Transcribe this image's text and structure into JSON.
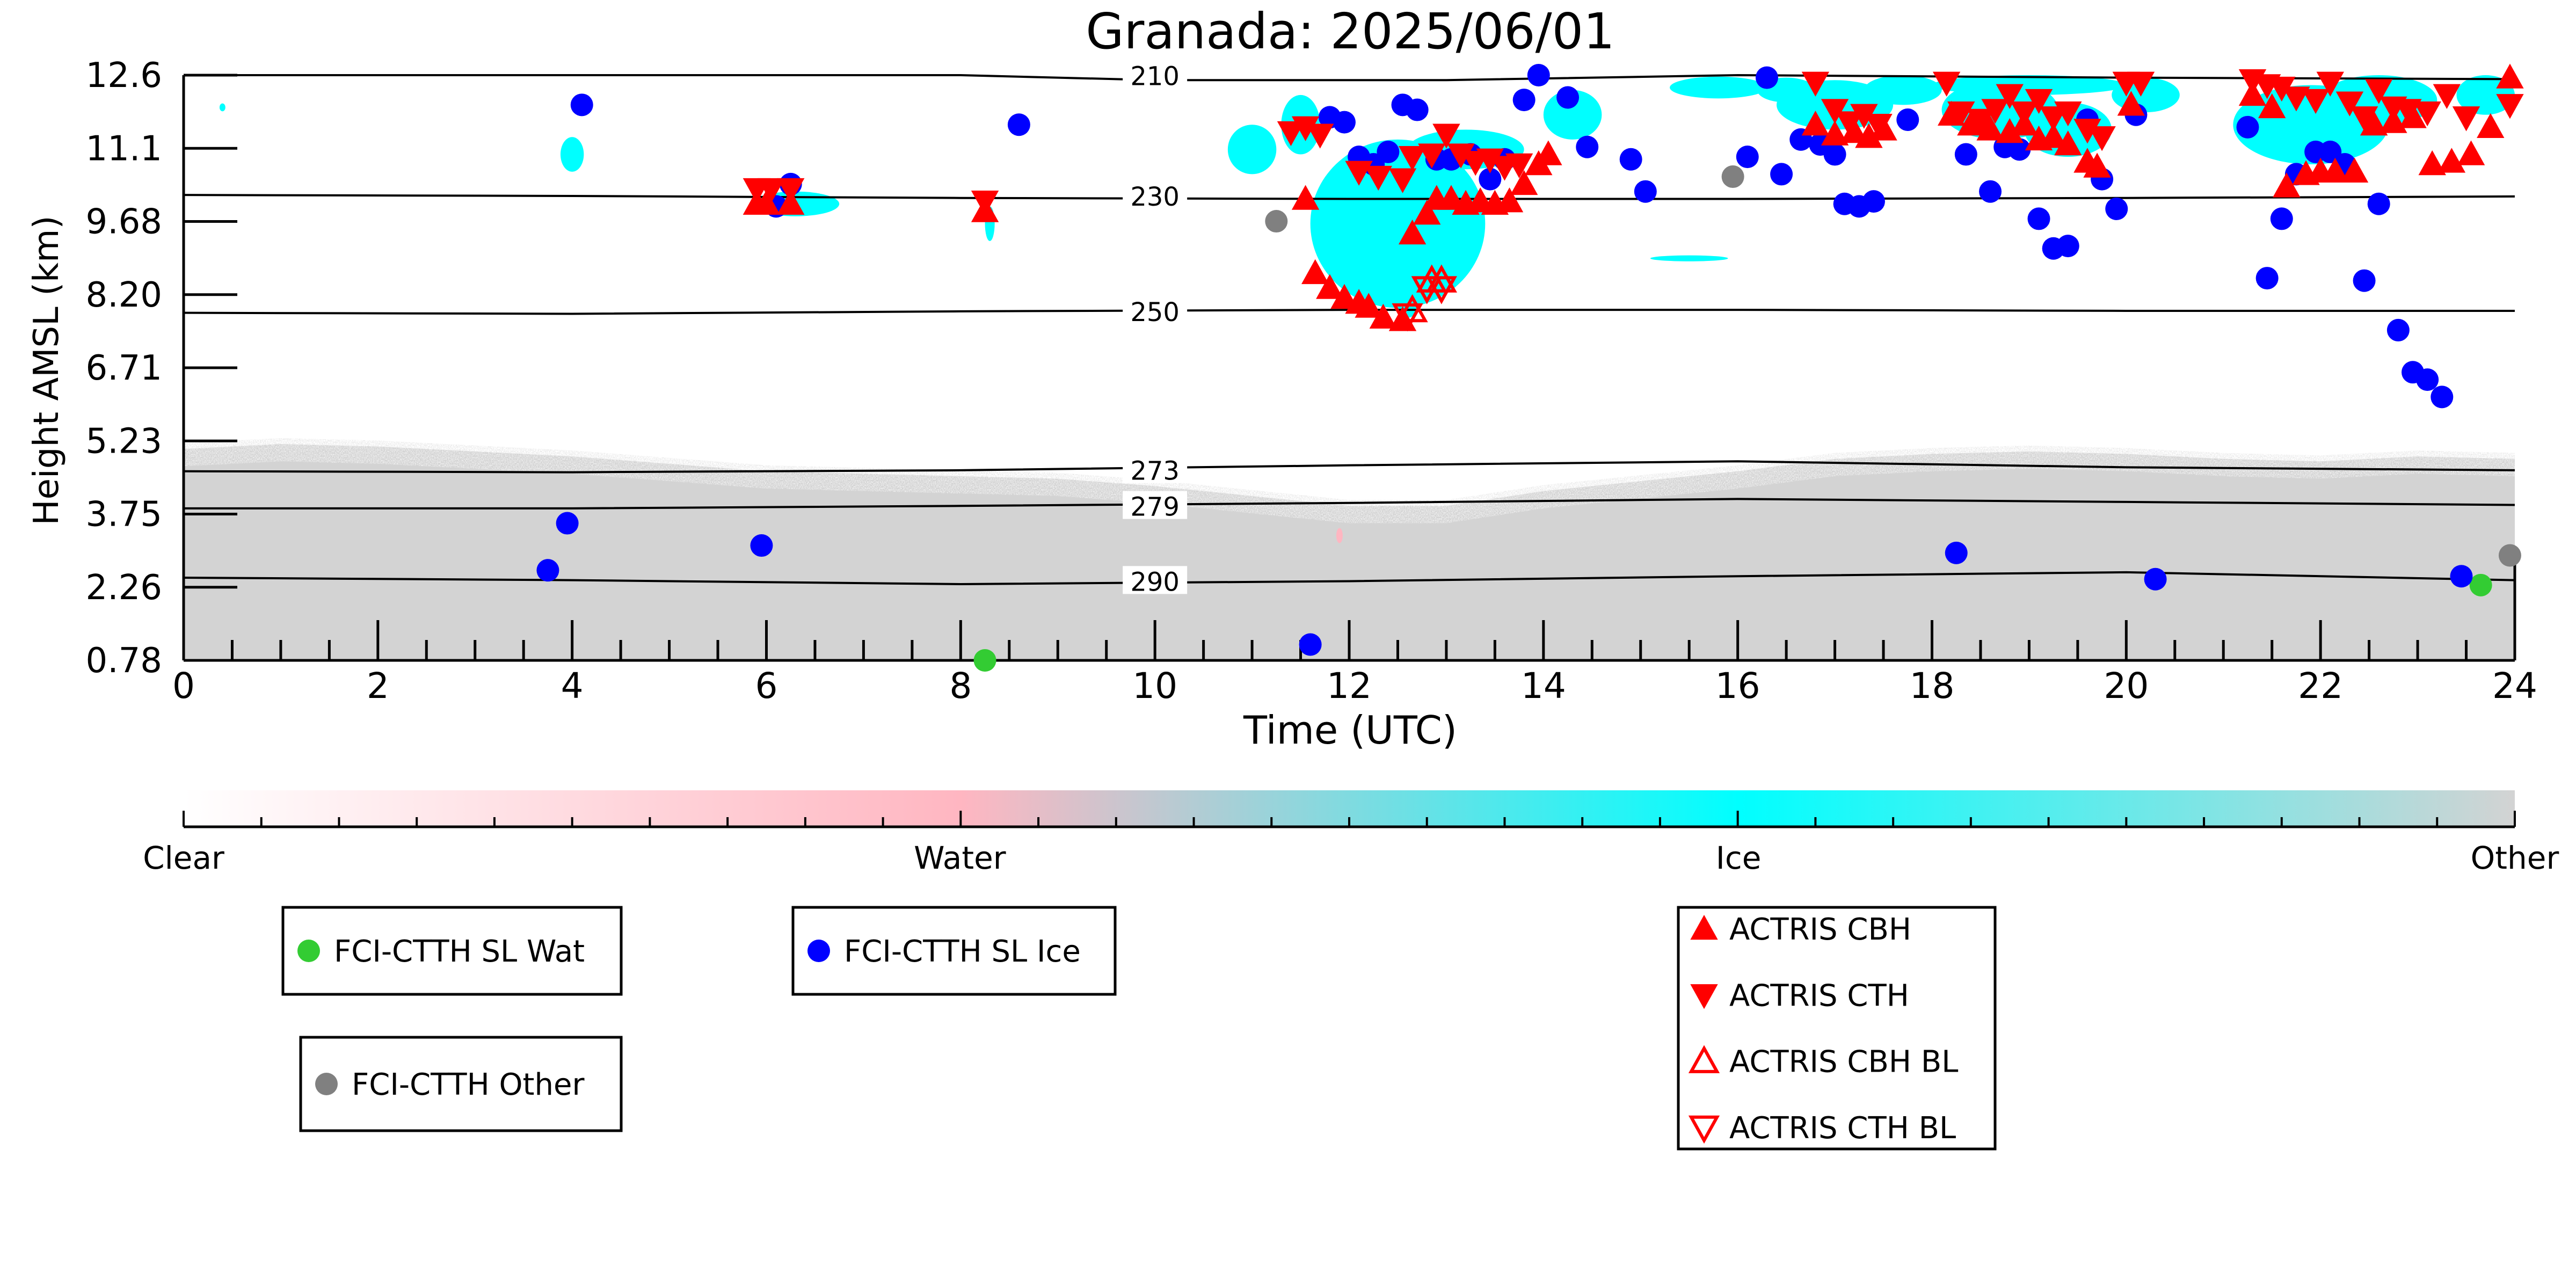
{
  "chart_data": {
    "type": "scatter",
    "title": "Granada: 2025/06/01",
    "xlabel": "Time (UTC)",
    "ylabel": "Height AMSL (km)",
    "xlim": [
      0,
      24
    ],
    "ylim": [
      0.78,
      12.6
    ],
    "x_ticks": [
      0,
      2,
      4,
      6,
      8,
      10,
      12,
      14,
      16,
      18,
      20,
      22,
      24
    ],
    "y_ticks": [
      "0.78",
      "2.26",
      "3.75",
      "5.23",
      "6.71",
      "8.20",
      "9.68",
      "11.1",
      "12.6"
    ],
    "colorbar": {
      "labels": [
        {
          "text": "Clear",
          "pos": 0.0
        },
        {
          "text": "Water",
          "pos": 0.333
        },
        {
          "text": "Ice",
          "pos": 0.667
        },
        {
          "text": "Other",
          "pos": 1.0
        }
      ],
      "stops": [
        "#ffffff",
        "#ffb6c1",
        "#00ffff",
        "#d3d3d3"
      ]
    },
    "colors": {
      "clear": "#ffffff",
      "water": "#ffb6c1",
      "ice": "#00ffff",
      "other": "#d3d3d3",
      "sl_wat": "#33cc33",
      "sl_ice": "#0000ff",
      "sl_other": "#808080",
      "actris": "#ff0000"
    },
    "isotherms": [
      {
        "label": "210",
        "x": [
          0,
          8,
          10,
          13,
          16,
          20,
          24
        ],
        "y": [
          12.6,
          12.65,
          12.5,
          12.5,
          12.6,
          12.55,
          12.52
        ]
      },
      {
        "label": "230",
        "x": [
          0,
          4,
          8,
          12,
          16,
          20,
          24
        ],
        "y": [
          10.18,
          10.16,
          10.12,
          10.1,
          10.1,
          10.12,
          10.15
        ]
      },
      {
        "label": "250",
        "x": [
          0,
          4,
          8,
          12,
          16,
          20,
          24
        ],
        "y": [
          7.8,
          7.78,
          7.83,
          7.86,
          7.86,
          7.84,
          7.84
        ]
      },
      {
        "label": "273",
        "x": [
          0,
          4,
          8,
          12,
          16,
          20,
          24
        ],
        "y": [
          4.6,
          4.58,
          4.62,
          4.72,
          4.8,
          4.68,
          4.62
        ]
      },
      {
        "label": "279",
        "x": [
          0,
          4,
          8,
          12,
          16,
          20,
          24
        ],
        "y": [
          3.85,
          3.85,
          3.9,
          3.96,
          4.04,
          3.98,
          3.92
        ]
      },
      {
        "label": "290",
        "x": [
          0,
          4,
          8,
          12,
          16,
          20,
          24
        ],
        "y": [
          2.45,
          2.4,
          2.32,
          2.38,
          2.48,
          2.56,
          2.4
        ]
      }
    ],
    "series": [
      {
        "name": "FCI-CTTH SL Wat",
        "marker": "circle",
        "color": "#33cc33",
        "points": [
          [
            8.25,
            0.78
          ],
          [
            23.65,
            2.3
          ]
        ]
      },
      {
        "name": "FCI-CTTH SL Ice",
        "marker": "circle",
        "color": "#0000ff",
        "points": [
          [
            3.75,
            2.6
          ],
          [
            3.95,
            3.55
          ],
          [
            4.1,
            12.0
          ],
          [
            5.95,
            3.1
          ],
          [
            6.1,
            9.95
          ],
          [
            6.25,
            10.4
          ],
          [
            8.6,
            11.6
          ],
          [
            11.6,
            1.1
          ],
          [
            11.8,
            11.75
          ],
          [
            11.95,
            11.65
          ],
          [
            12.1,
            10.95
          ],
          [
            12.25,
            10.8
          ],
          [
            12.4,
            11.05
          ],
          [
            12.55,
            12.0
          ],
          [
            12.7,
            11.9
          ],
          [
            12.9,
            10.9
          ],
          [
            13.05,
            10.9
          ],
          [
            13.25,
            11.0
          ],
          [
            13.45,
            10.5
          ],
          [
            13.6,
            10.9
          ],
          [
            13.8,
            12.1
          ],
          [
            13.95,
            12.6
          ],
          [
            14.25,
            12.15
          ],
          [
            14.45,
            11.15
          ],
          [
            14.9,
            10.9
          ],
          [
            15.05,
            10.25
          ],
          [
            16.1,
            10.95
          ],
          [
            16.3,
            12.55
          ],
          [
            16.45,
            10.6
          ],
          [
            16.65,
            11.3
          ],
          [
            16.85,
            11.2
          ],
          [
            17.0,
            11.0
          ],
          [
            17.1,
            10.0
          ],
          [
            17.25,
            9.95
          ],
          [
            17.4,
            10.05
          ],
          [
            17.75,
            11.7
          ],
          [
            18.25,
            2.95
          ],
          [
            18.35,
            11.0
          ],
          [
            18.6,
            10.25
          ],
          [
            18.75,
            11.15
          ],
          [
            18.9,
            11.1
          ],
          [
            19.1,
            9.7
          ],
          [
            19.25,
            9.1
          ],
          [
            19.4,
            9.15
          ],
          [
            19.6,
            11.7
          ],
          [
            19.75,
            10.5
          ],
          [
            19.9,
            9.9
          ],
          [
            20.1,
            11.8
          ],
          [
            20.3,
            2.42
          ],
          [
            21.25,
            11.55
          ],
          [
            21.45,
            8.5
          ],
          [
            21.6,
            9.7
          ],
          [
            21.75,
            10.6
          ],
          [
            21.95,
            11.05
          ],
          [
            22.1,
            11.05
          ],
          [
            22.25,
            10.8
          ],
          [
            22.45,
            8.45
          ],
          [
            22.6,
            10.0
          ],
          [
            22.8,
            7.45
          ],
          [
            22.95,
            6.6
          ],
          [
            23.1,
            6.45
          ],
          [
            23.25,
            6.1
          ],
          [
            23.45,
            2.48
          ]
        ]
      },
      {
        "name": "FCI-CTTH Other",
        "marker": "circle",
        "color": "#808080",
        "points": [
          [
            11.25,
            9.65
          ],
          [
            15.95,
            10.55
          ],
          [
            23.95,
            2.9
          ]
        ]
      },
      {
        "name": "ACTRIS CBH",
        "marker": "triangle-up",
        "color": "#ff0000",
        "points": [
          [
            5.9,
            10.0
          ],
          [
            6.0,
            10.0
          ],
          [
            6.25,
            10.0
          ],
          [
            8.25,
            9.85
          ],
          [
            11.55,
            10.1
          ],
          [
            11.65,
            8.6
          ],
          [
            11.8,
            8.3
          ],
          [
            11.95,
            8.1
          ],
          [
            12.1,
            8.0
          ],
          [
            12.2,
            7.92
          ],
          [
            12.35,
            7.7
          ],
          [
            12.55,
            7.65
          ],
          [
            12.65,
            9.4
          ],
          [
            12.8,
            9.8
          ],
          [
            12.9,
            10.1
          ],
          [
            13.05,
            10.1
          ],
          [
            13.2,
            10.0
          ],
          [
            13.35,
            10.05
          ],
          [
            13.5,
            10.0
          ],
          [
            13.65,
            10.05
          ],
          [
            13.8,
            10.4
          ],
          [
            13.95,
            10.8
          ],
          [
            14.05,
            11.0
          ],
          [
            16.8,
            11.6
          ],
          [
            17.0,
            11.4
          ],
          [
            17.2,
            11.45
          ],
          [
            17.35,
            11.35
          ],
          [
            17.5,
            11.5
          ],
          [
            18.2,
            11.8
          ],
          [
            18.4,
            11.6
          ],
          [
            18.6,
            11.5
          ],
          [
            18.8,
            11.45
          ],
          [
            18.95,
            11.6
          ],
          [
            19.1,
            11.3
          ],
          [
            19.25,
            11.35
          ],
          [
            19.4,
            11.2
          ],
          [
            19.6,
            10.85
          ],
          [
            19.7,
            10.75
          ],
          [
            20.05,
            12.0
          ],
          [
            21.3,
            12.2
          ],
          [
            21.5,
            11.95
          ],
          [
            21.65,
            10.35
          ],
          [
            21.85,
            10.6
          ],
          [
            22.0,
            10.65
          ],
          [
            22.15,
            10.65
          ],
          [
            22.35,
            10.65
          ],
          [
            22.55,
            11.6
          ],
          [
            22.75,
            11.65
          ],
          [
            22.95,
            11.75
          ],
          [
            23.15,
            10.8
          ],
          [
            23.35,
            10.85
          ],
          [
            23.55,
            11.0
          ],
          [
            23.75,
            11.55
          ],
          [
            23.95,
            12.55
          ]
        ]
      },
      {
        "name": "ACTRIS CTH",
        "marker": "triangle-down",
        "color": "#ff0000",
        "points": [
          [
            5.9,
            10.3
          ],
          [
            6.05,
            10.3
          ],
          [
            6.25,
            10.3
          ],
          [
            8.25,
            10.05
          ],
          [
            11.4,
            11.45
          ],
          [
            11.55,
            11.55
          ],
          [
            11.7,
            11.4
          ],
          [
            12.1,
            10.65
          ],
          [
            12.3,
            10.55
          ],
          [
            12.55,
            10.5
          ],
          [
            12.65,
            10.95
          ],
          [
            12.85,
            11.0
          ],
          [
            13.0,
            11.4
          ],
          [
            13.15,
            11.0
          ],
          [
            13.3,
            10.85
          ],
          [
            13.45,
            10.9
          ],
          [
            13.6,
            10.75
          ],
          [
            13.75,
            10.8
          ],
          [
            16.8,
            12.45
          ],
          [
            17.0,
            11.9
          ],
          [
            17.15,
            11.65
          ],
          [
            17.3,
            11.8
          ],
          [
            17.45,
            11.6
          ],
          [
            18.15,
            12.45
          ],
          [
            18.3,
            11.85
          ],
          [
            18.5,
            11.7
          ],
          [
            18.65,
            11.9
          ],
          [
            18.8,
            12.2
          ],
          [
            18.95,
            11.85
          ],
          [
            19.1,
            12.1
          ],
          [
            19.25,
            11.75
          ],
          [
            19.4,
            11.85
          ],
          [
            19.6,
            11.5
          ],
          [
            19.75,
            11.35
          ],
          [
            20.0,
            12.45
          ],
          [
            20.15,
            12.45
          ],
          [
            21.3,
            12.5
          ],
          [
            21.45,
            12.4
          ],
          [
            21.6,
            12.35
          ],
          [
            21.75,
            12.15
          ],
          [
            21.95,
            12.1
          ],
          [
            22.1,
            12.45
          ],
          [
            22.3,
            12.05
          ],
          [
            22.45,
            11.75
          ],
          [
            22.6,
            12.3
          ],
          [
            22.75,
            11.95
          ],
          [
            22.9,
            11.9
          ],
          [
            23.1,
            11.85
          ],
          [
            23.3,
            12.2
          ],
          [
            23.5,
            11.75
          ],
          [
            23.95,
            12.0
          ]
        ]
      },
      {
        "name": "ACTRIS CBH BL",
        "marker": "triangle-up-open",
        "color": "#ff0000",
        "points": [
          [
            12.65,
            7.85
          ],
          [
            12.85,
            8.45
          ],
          [
            12.95,
            8.45
          ]
        ]
      },
      {
        "name": "ACTRIS CTH BL",
        "marker": "triangle-down-open",
        "color": "#ff0000",
        "points": [
          [
            12.6,
            7.75
          ],
          [
            12.8,
            8.3
          ],
          [
            12.95,
            8.3
          ]
        ]
      }
    ]
  }
}
